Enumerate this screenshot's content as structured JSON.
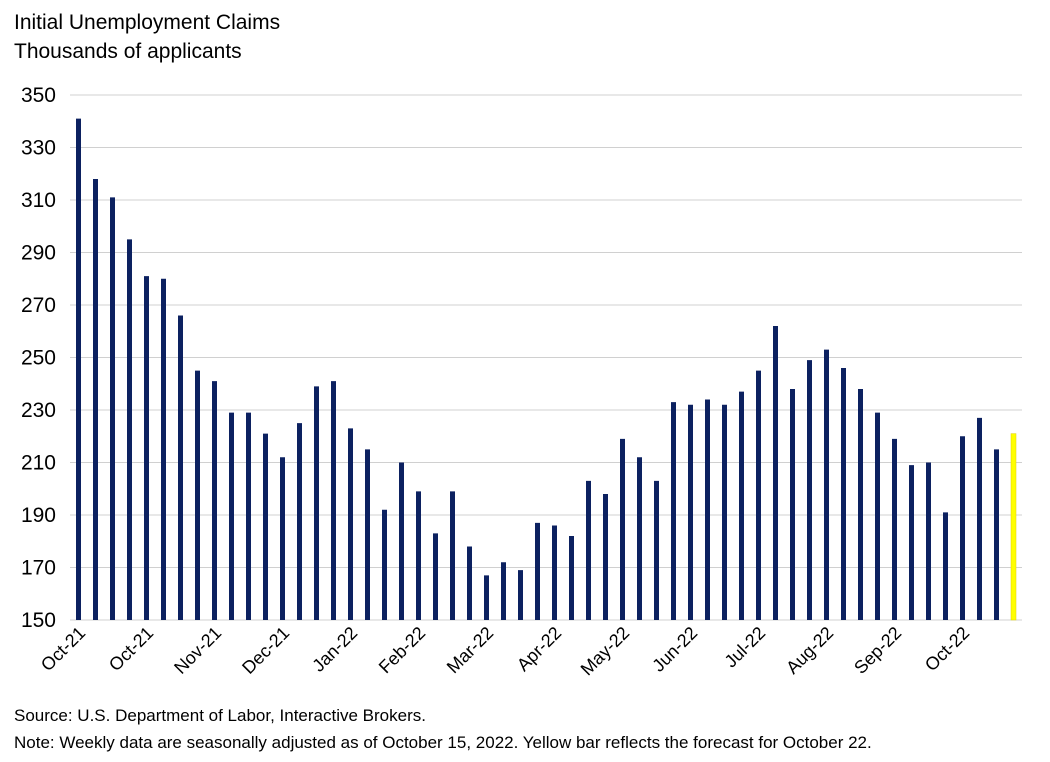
{
  "chart_data": {
    "type": "bar",
    "title": "Initial Unemployment Claims",
    "subtitle": "Thousands of applicants",
    "xlabel": "",
    "ylabel": "",
    "ylim": [
      150,
      350
    ],
    "yticks": [
      150,
      170,
      190,
      210,
      230,
      250,
      270,
      290,
      310,
      330,
      350
    ],
    "grid": true,
    "x_tick_labels": [
      "Oct-21",
      "Oct-21",
      "Nov-21",
      "Dec-21",
      "Jan-22",
      "Feb-22",
      "Mar-22",
      "Apr-22",
      "May-22",
      "Jun-22",
      "Jul-22",
      "Aug-22",
      "Sep-22",
      "Oct-22"
    ],
    "x_tick_bar_index": [
      0,
      4,
      8,
      12,
      16,
      20,
      24,
      28,
      32,
      36,
      40,
      44,
      48,
      52
    ],
    "colors": {
      "actual": "#0c2160",
      "forecast": "#ffff00"
    },
    "values": [
      341,
      318,
      311,
      295,
      281,
      280,
      266,
      245,
      241,
      229,
      229,
      221,
      212,
      225,
      239,
      241,
      223,
      215,
      192,
      210,
      199,
      183,
      199,
      178,
      167,
      172,
      169,
      187,
      186,
      182,
      203,
      198,
      219,
      212,
      203,
      233,
      232,
      234,
      232,
      237,
      245,
      262,
      238,
      249,
      253,
      246,
      238,
      229,
      219,
      209,
      210,
      191,
      220,
      227,
      215,
      221
    ],
    "forecast_index": 55
  },
  "footer": {
    "source": "Source: U.S. Department of Labor, Interactive Brokers.",
    "note": "Note: Weekly data are seasonally adjusted as of October 15, 2022. Yellow bar reflects the forecast for October 22."
  }
}
